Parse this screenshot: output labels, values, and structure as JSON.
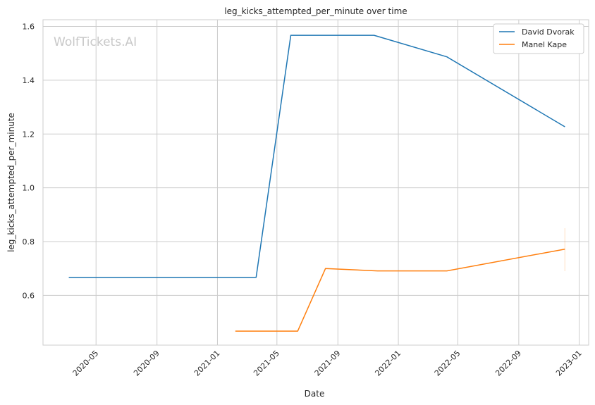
{
  "chart_data": {
    "type": "line",
    "title": "leg_kicks_attempted_per_minute over time",
    "xlabel": "Date",
    "ylabel": "leg_kicks_attempted_per_minute",
    "watermark": "WolfTickets.AI",
    "x_ticks": [
      "2020-05",
      "2020-09",
      "2021-01",
      "2021-05",
      "2021-09",
      "2022-01",
      "2022-05",
      "2022-09",
      "2023-01"
    ],
    "y_ticks": [
      "0.6",
      "0.8",
      "1.0",
      "1.2",
      "1.4",
      "1.6"
    ],
    "xlim": [
      "2020-01-15",
      "2023-01-20"
    ],
    "ylim": [
      0.415,
      1.625
    ],
    "grid": true,
    "legend_position": "top-right",
    "series": [
      {
        "name": "David Dvorak",
        "color": "#1f77b4",
        "points": [
          {
            "x": "2020-03-07",
            "y": 0.667
          },
          {
            "x": "2021-03-20",
            "y": 0.667
          },
          {
            "x": "2021-05-29",
            "y": 1.567
          },
          {
            "x": "2021-11-13",
            "y": 1.567
          },
          {
            "x": "2022-04-09",
            "y": 1.487
          },
          {
            "x": "2022-12-03",
            "y": 1.227
          }
        ]
      },
      {
        "name": "Manel Kape",
        "color": "#ff7f0e",
        "points": [
          {
            "x": "2021-02-06",
            "y": 0.467
          },
          {
            "x": "2021-06-12",
            "y": 0.467
          },
          {
            "x": "2021-08-07",
            "y": 0.7
          },
          {
            "x": "2021-11-20",
            "y": 0.691
          },
          {
            "x": "2022-04-09",
            "y": 0.691
          },
          {
            "x": "2022-12-03",
            "y": 0.772
          }
        ],
        "error_bar": {
          "x": "2022-12-03",
          "low": 0.69,
          "high": 0.85
        }
      }
    ]
  }
}
